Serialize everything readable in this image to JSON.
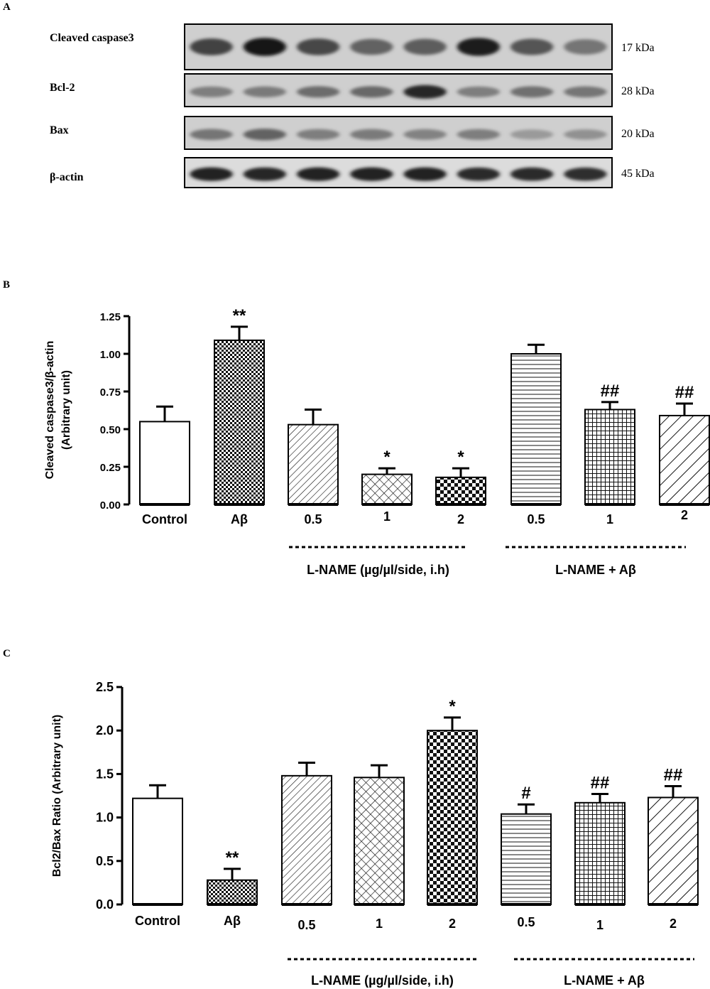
{
  "panel_a": {
    "label": "A",
    "blots": [
      {
        "name": "Cleaved caspase3",
        "kda": "17 kDa",
        "intensity": [
          0.72,
          0.95,
          0.7,
          0.55,
          0.58,
          0.92,
          0.62,
          0.45
        ]
      },
      {
        "name": "Bcl-2",
        "kda": "28 kDa",
        "intensity": [
          0.4,
          0.42,
          0.5,
          0.52,
          0.88,
          0.4,
          0.48,
          0.45
        ]
      },
      {
        "name": "Bax",
        "kda": "20 kDa",
        "intensity": [
          0.45,
          0.55,
          0.4,
          0.42,
          0.38,
          0.4,
          0.25,
          0.3
        ]
      },
      {
        "name": "β-actin",
        "kda": "45 kDa",
        "intensity": [
          0.9,
          0.88,
          0.9,
          0.9,
          0.9,
          0.85,
          0.86,
          0.84
        ]
      }
    ]
  },
  "panel_b_label": "B",
  "panel_c_label": "C",
  "chart_data": [
    {
      "type": "bar",
      "ylabel_line1": "Cleaved caspase3/β-actin",
      "ylabel_line2": "(Arbitrary unit)",
      "ylim": [
        0,
        1.25
      ],
      "yticks": [
        "0.00",
        "0.25",
        "0.50",
        "0.75",
        "1.00",
        "1.25"
      ],
      "ytick_values": [
        0,
        0.25,
        0.5,
        0.75,
        1.0,
        1.25
      ],
      "categories": [
        "Control",
        "Aβ",
        "0.5",
        "1",
        "2",
        "0.5",
        "1",
        "2"
      ],
      "values": [
        0.55,
        1.09,
        0.53,
        0.2,
        0.18,
        1.0,
        0.63,
        0.59
      ],
      "errors": [
        0.1,
        0.09,
        0.1,
        0.04,
        0.06,
        0.06,
        0.05,
        0.08
      ],
      "annotations": [
        "",
        "**",
        "",
        "*",
        "*",
        "",
        "##",
        "##"
      ],
      "patterns": [
        "none",
        "dense-check",
        "diag",
        "crosshatch",
        "checker",
        "horiz",
        "grid",
        "diag-wide"
      ],
      "groups": [
        {
          "label": "L-NAME (µg/µl/side, i.h)",
          "from": 2,
          "to": 4
        },
        {
          "label": "L-NAME + Aβ",
          "from": 5,
          "to": 7
        }
      ]
    },
    {
      "type": "bar",
      "ylabel_line1": "Bcl2/Bax Ratio (Arbitrary unit)",
      "ylim": [
        0,
        2.5
      ],
      "yticks": [
        "0.0",
        "0.5",
        "1.0",
        "1.5",
        "2.0",
        "2.5"
      ],
      "ytick_values": [
        0,
        0.5,
        1.0,
        1.5,
        2.0,
        2.5
      ],
      "categories": [
        "Control",
        "Aβ",
        "0.5",
        "1",
        "2",
        "0.5",
        "1",
        "2"
      ],
      "values": [
        1.22,
        0.28,
        1.48,
        1.46,
        2.0,
        1.04,
        1.17,
        1.23
      ],
      "errors": [
        0.15,
        0.13,
        0.15,
        0.14,
        0.15,
        0.11,
        0.1,
        0.13
      ],
      "annotations": [
        "",
        "**",
        "",
        "",
        "*",
        "#",
        "##",
        "##"
      ],
      "patterns": [
        "none",
        "dense-check",
        "diag",
        "crosshatch",
        "checker",
        "horiz",
        "grid",
        "diag-wide"
      ],
      "groups": [
        {
          "label": "L-NAME (µg/µl/side, i.h)",
          "from": 2,
          "to": 4
        },
        {
          "label": "L-NAME + Aβ",
          "from": 5,
          "to": 7
        }
      ]
    }
  ]
}
